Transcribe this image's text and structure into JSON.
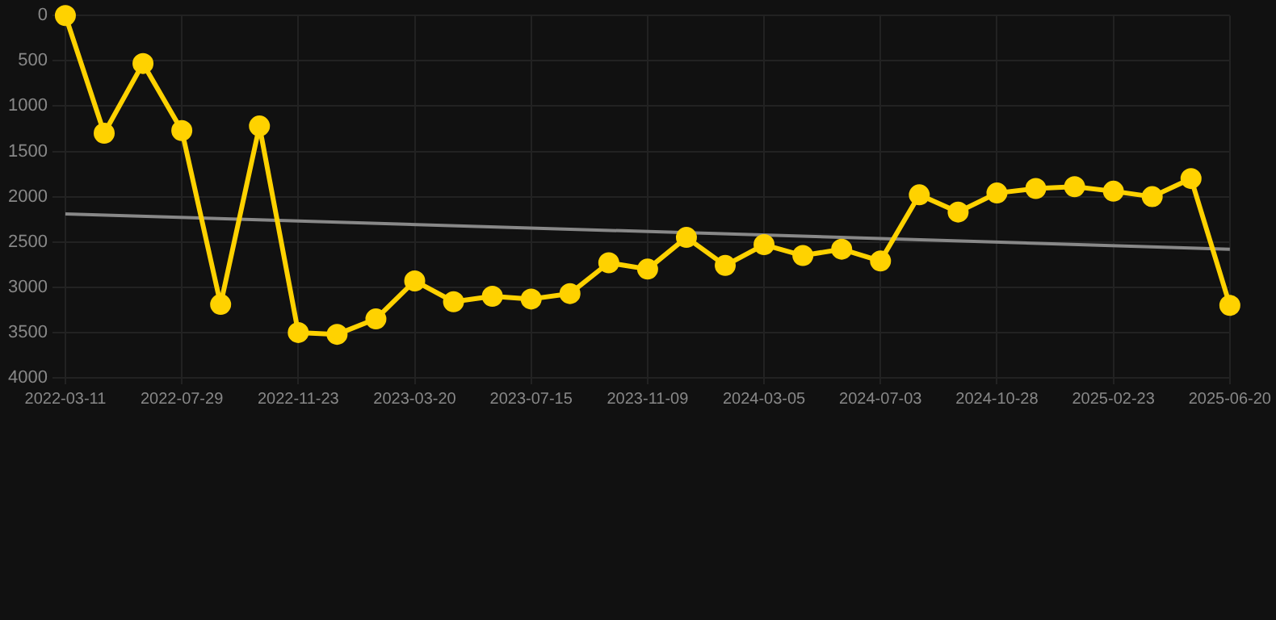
{
  "chart_data": {
    "type": "line",
    "categories": [
      "2022-03-11",
      null,
      null,
      "2022-07-29",
      null,
      null,
      "2022-11-23",
      null,
      null,
      "2023-03-20",
      null,
      null,
      "2023-07-15",
      null,
      null,
      "2023-11-09",
      null,
      null,
      "2024-03-05",
      null,
      null,
      "2024-07-03",
      null,
      null,
      "2024-10-28",
      null,
      null,
      "2025-02-23",
      null,
      null,
      "2025-06-20"
    ],
    "series": [
      {
        "color": "#ffd200",
        "marker": "circle",
        "values": [
          0,
          1300,
          530,
          1270,
          3190,
          1220,
          3500,
          3520,
          3350,
          2930,
          3160,
          3100,
          3130,
          3070,
          2730,
          2800,
          2450,
          2760,
          2530,
          2650,
          2580,
          2710,
          1980,
          2170,
          1960,
          1910,
          1890,
          1940,
          2000,
          1800,
          3200
        ]
      },
      {
        "type": "line",
        "color": "#888888",
        "marker": "none",
        "values": [
          2190,
          null,
          null,
          null,
          null,
          null,
          null,
          null,
          null,
          null,
          null,
          null,
          null,
          null,
          null,
          null,
          null,
          null,
          null,
          null,
          null,
          null,
          null,
          null,
          null,
          null,
          null,
          null,
          null,
          null,
          2580
        ]
      }
    ],
    "ylim": [
      4000,
      0
    ],
    "yticks": [
      0,
      500,
      1000,
      1500,
      2000,
      2500,
      3000,
      3500,
      4000
    ],
    "grid": true,
    "legend": false
  }
}
